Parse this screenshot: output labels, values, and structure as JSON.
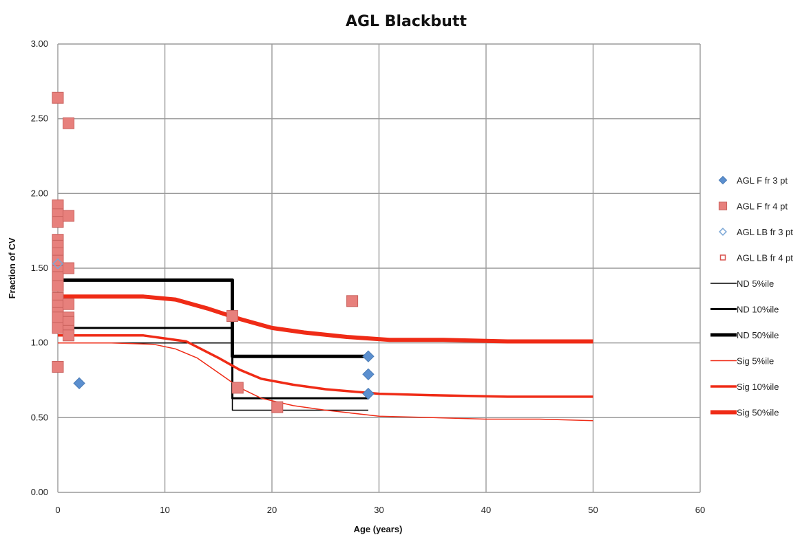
{
  "chart_data": {
    "type": "scatter",
    "title": "AGL Blackbutt",
    "xlabel": "Age (years)",
    "ylabel": "Fraction of CV",
    "xlim": [
      0,
      60
    ],
    "ylim": [
      0,
      3
    ],
    "x_ticks": [
      "0",
      "10",
      "20",
      "30",
      "40",
      "50",
      "60"
    ],
    "y_ticks": [
      "0.00",
      "0.50",
      "1.00",
      "1.50",
      "2.00",
      "2.50",
      "3.00"
    ],
    "grid": true,
    "legend_position": "right",
    "series": [
      {
        "name": "AGL F fr 3 pt",
        "kind": "marker",
        "marker": "diamond",
        "color": "#5b8fcf",
        "points": [
          [
            2,
            0.73
          ],
          [
            29,
            0.91
          ],
          [
            29,
            0.79
          ],
          [
            29,
            0.66
          ]
        ]
      },
      {
        "name": "AGL F fr 4 pt",
        "kind": "marker",
        "marker": "square",
        "color": "#e7807c",
        "points": [
          [
            0,
            2.64
          ],
          [
            1,
            2.47
          ],
          [
            0,
            1.92
          ],
          [
            0,
            1.86
          ],
          [
            0,
            1.81
          ],
          [
            1,
            1.85
          ],
          [
            0,
            1.69
          ],
          [
            0,
            1.65
          ],
          [
            0,
            1.6
          ],
          [
            0,
            1.55
          ],
          [
            0,
            1.48
          ],
          [
            0,
            1.44
          ],
          [
            0,
            1.38
          ],
          [
            0,
            1.3
          ],
          [
            0,
            1.25
          ],
          [
            0,
            1.2
          ],
          [
            0,
            1.17
          ],
          [
            0,
            1.1
          ],
          [
            0,
            0.84
          ],
          [
            1,
            1.5
          ],
          [
            1,
            1.26
          ],
          [
            1,
            1.17
          ],
          [
            1,
            1.14
          ],
          [
            1,
            1.08
          ],
          [
            1,
            1.05
          ],
          [
            16.3,
            1.18
          ],
          [
            16.8,
            0.7
          ],
          [
            20.5,
            0.57
          ],
          [
            27.5,
            1.28
          ]
        ]
      },
      {
        "name": "AGL LB fr 3 pt",
        "kind": "marker",
        "marker": "diamond-open",
        "color": "#7aa6d6",
        "points": [
          [
            0,
            1.53
          ]
        ]
      },
      {
        "name": "AGL LB fr 4 pt",
        "kind": "marker",
        "marker": "square-open",
        "color": "#d9534f",
        "points": []
      },
      {
        "name": "ND 5%ile",
        "kind": "line",
        "color": "#000000",
        "width": 1.5,
        "points": [
          [
            0,
            1.0
          ],
          [
            16.3,
            1.0
          ],
          [
            16.3,
            0.55
          ],
          [
            29,
            0.55
          ]
        ]
      },
      {
        "name": "ND 10%ile",
        "kind": "line",
        "color": "#000000",
        "width": 3,
        "points": [
          [
            0,
            1.1
          ],
          [
            16.3,
            1.1
          ],
          [
            16.3,
            0.63
          ],
          [
            29,
            0.63
          ]
        ]
      },
      {
        "name": "ND 50%ile",
        "kind": "line",
        "color": "#000000",
        "width": 5,
        "points": [
          [
            0,
            1.42
          ],
          [
            16.3,
            1.42
          ],
          [
            16.3,
            0.91
          ],
          [
            29,
            0.91
          ]
        ]
      },
      {
        "name": "Sig 5%ile",
        "kind": "line",
        "color": "#ef2b16",
        "width": 1.5,
        "points": [
          [
            0,
            1.0
          ],
          [
            5,
            1.0
          ],
          [
            9,
            0.99
          ],
          [
            11,
            0.96
          ],
          [
            13,
            0.9
          ],
          [
            15,
            0.8
          ],
          [
            17,
            0.7
          ],
          [
            19,
            0.63
          ],
          [
            22,
            0.58
          ],
          [
            25,
            0.55
          ],
          [
            30,
            0.51
          ],
          [
            35,
            0.5
          ],
          [
            40,
            0.49
          ],
          [
            45,
            0.49
          ],
          [
            50,
            0.48
          ]
        ]
      },
      {
        "name": "Sig 10%ile",
        "kind": "line",
        "color": "#ef2b16",
        "width": 3.5,
        "points": [
          [
            0,
            1.05
          ],
          [
            8,
            1.05
          ],
          [
            12,
            1.01
          ],
          [
            15,
            0.9
          ],
          [
            17,
            0.82
          ],
          [
            19,
            0.76
          ],
          [
            22,
            0.72
          ],
          [
            25,
            0.69
          ],
          [
            30,
            0.66
          ],
          [
            35,
            0.65
          ],
          [
            42,
            0.64
          ],
          [
            50,
            0.64
          ]
        ]
      },
      {
        "name": "Sig 50%ile",
        "kind": "line",
        "color": "#ef2b16",
        "width": 6,
        "points": [
          [
            0,
            1.31
          ],
          [
            8,
            1.31
          ],
          [
            11,
            1.29
          ],
          [
            14,
            1.23
          ],
          [
            17,
            1.16
          ],
          [
            20,
            1.1
          ],
          [
            23,
            1.07
          ],
          [
            27,
            1.04
          ],
          [
            31,
            1.02
          ],
          [
            36,
            1.02
          ],
          [
            42,
            1.01
          ],
          [
            50,
            1.01
          ]
        ]
      }
    ]
  }
}
